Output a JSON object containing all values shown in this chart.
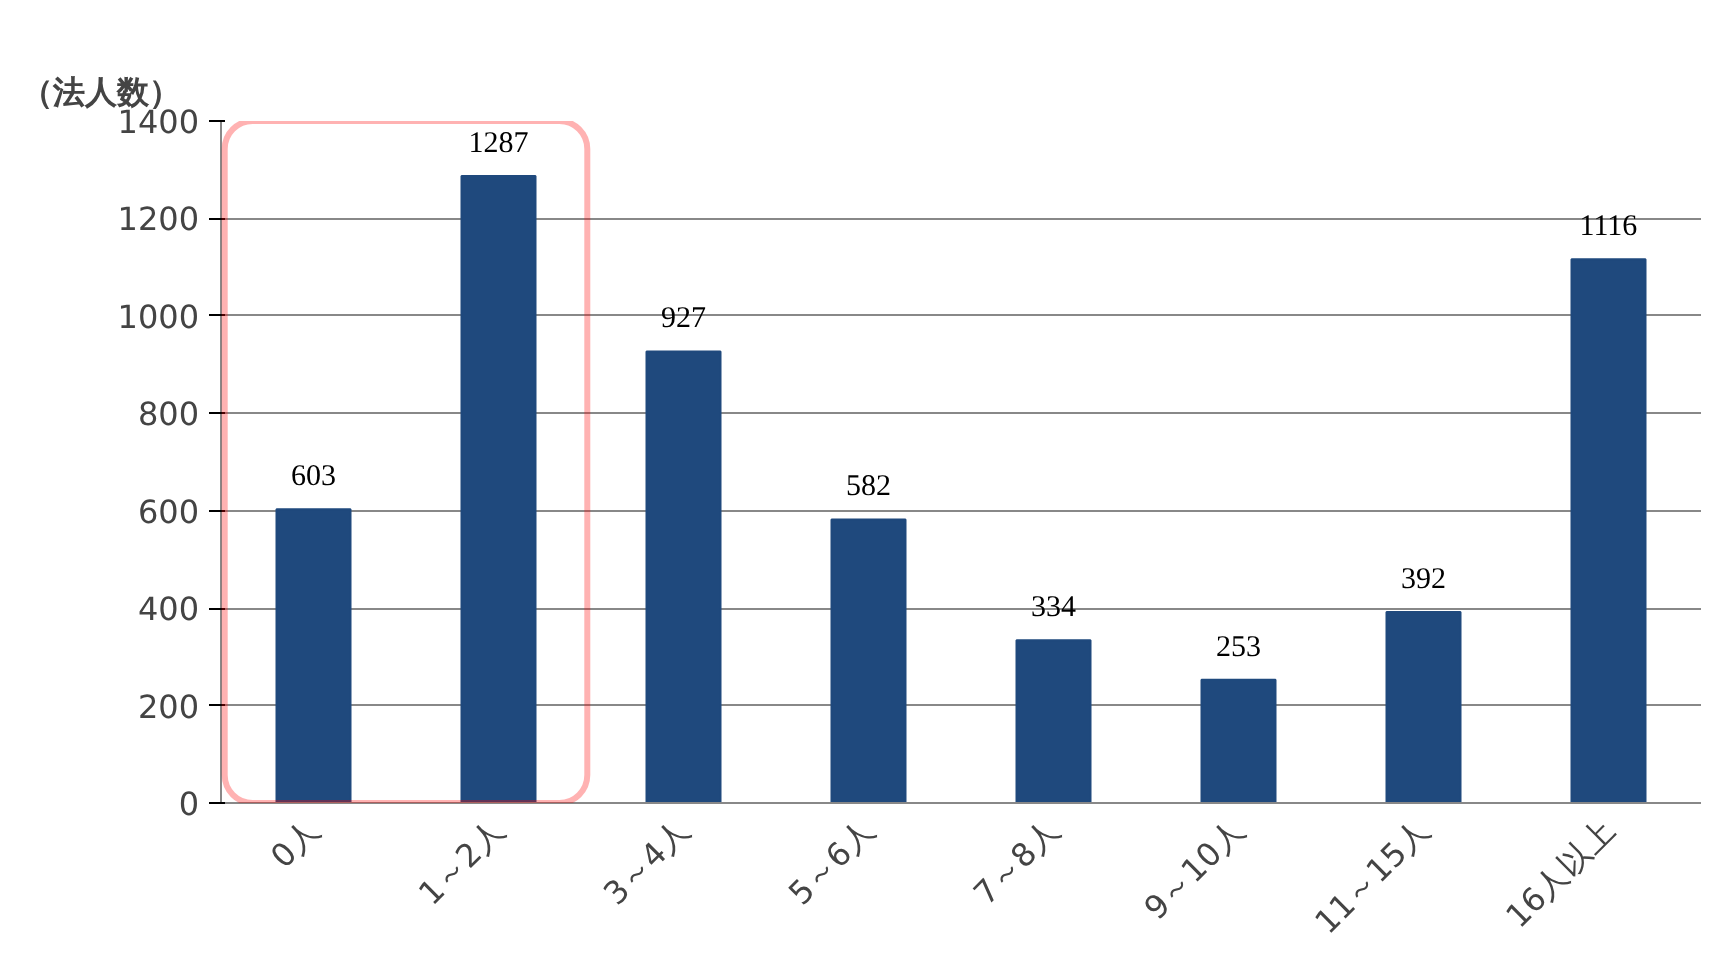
{
  "chart_data": {
    "type": "bar",
    "ylabel": "（法人数）",
    "categories": [
      "0人",
      "1～2人",
      "3～4人",
      "5～6人",
      "7～8人",
      "9～10人",
      "11～15人",
      "16人以上"
    ],
    "values": [
      603,
      1287,
      927,
      582,
      334,
      253,
      392,
      1116
    ],
    "color": "#1f497d",
    "ylim": [
      0,
      1400
    ],
    "yticks": [
      0,
      200,
      400,
      600,
      800,
      1000,
      1200,
      1400
    ],
    "grid": "y",
    "data_labels": true
  }
}
